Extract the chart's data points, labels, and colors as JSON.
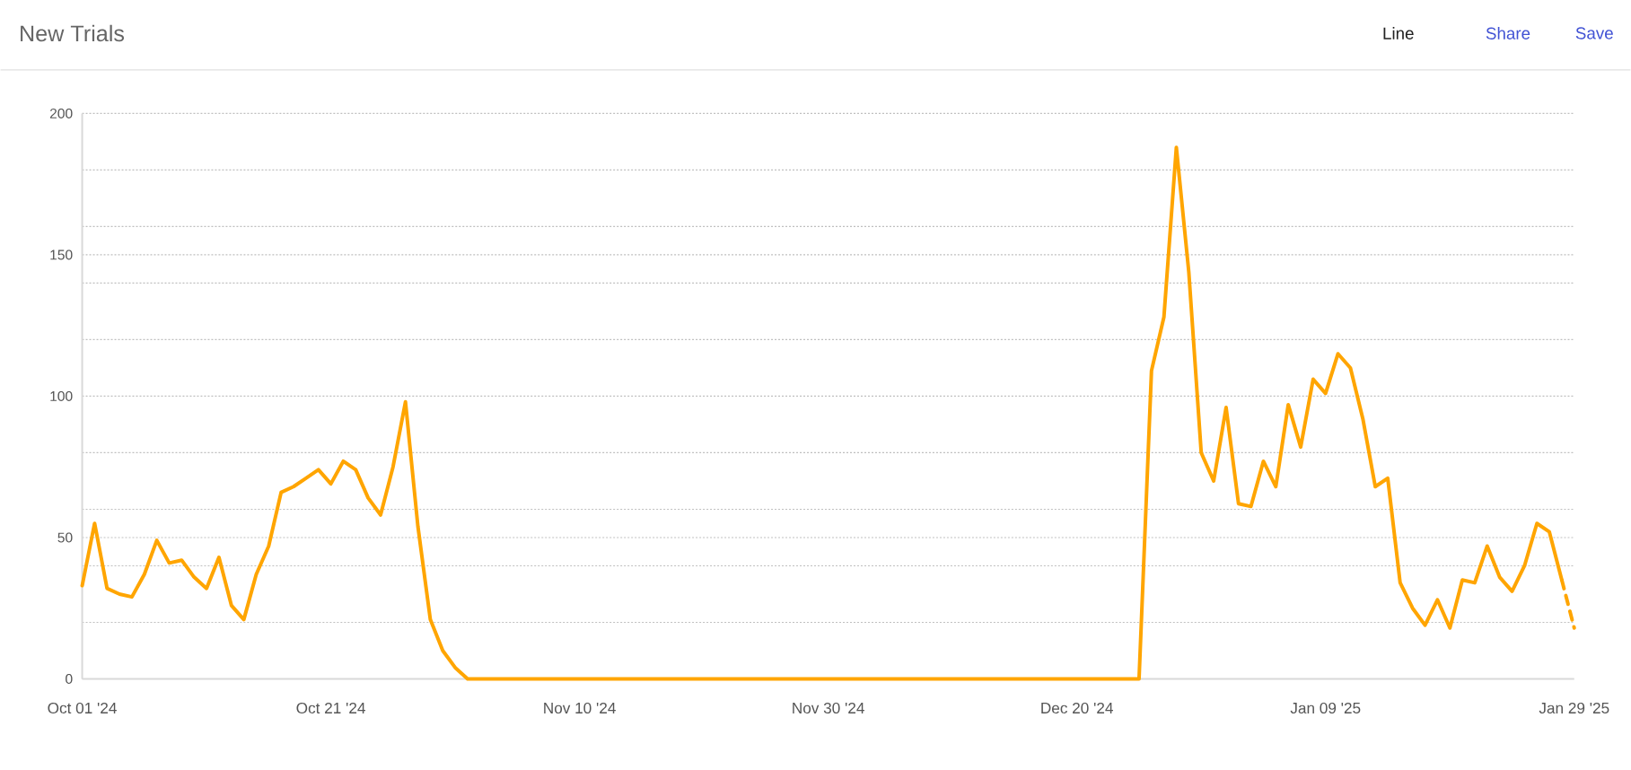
{
  "chart_data": {
    "type": "line",
    "title": "New Trials",
    "annotations": [
      "Line",
      "Share",
      "Save"
    ],
    "x": [
      "2024-10-01",
      "2024-10-02",
      "2024-10-03",
      "2024-10-04",
      "2024-10-05",
      "2024-10-06",
      "2024-10-07",
      "2024-10-08",
      "2024-10-09",
      "2024-10-10",
      "2024-10-11",
      "2024-10-12",
      "2024-10-13",
      "2024-10-14",
      "2024-10-15",
      "2024-10-16",
      "2024-10-17",
      "2024-10-18",
      "2024-10-19",
      "2024-10-20",
      "2024-10-21",
      "2024-10-22",
      "2024-10-23",
      "2024-10-24",
      "2024-10-25",
      "2024-10-26",
      "2024-10-27",
      "2024-10-28",
      "2024-10-29",
      "2024-10-30",
      "2024-10-31",
      "2024-11-01",
      "2024-11-02",
      "2024-11-03",
      "2024-11-04",
      "2024-11-05",
      "2024-11-06",
      "2024-11-07",
      "2024-11-08",
      "2024-11-09",
      "2024-11-10",
      "2024-11-11",
      "2024-11-12",
      "2024-11-13",
      "2024-11-14",
      "2024-11-15",
      "2024-11-16",
      "2024-11-17",
      "2024-11-18",
      "2024-11-19",
      "2024-11-20",
      "2024-11-21",
      "2024-11-22",
      "2024-11-23",
      "2024-11-24",
      "2024-11-25",
      "2024-11-26",
      "2024-11-27",
      "2024-11-28",
      "2024-11-29",
      "2024-11-30",
      "2024-12-01",
      "2024-12-02",
      "2024-12-03",
      "2024-12-04",
      "2024-12-05",
      "2024-12-06",
      "2024-12-07",
      "2024-12-08",
      "2024-12-09",
      "2024-12-10",
      "2024-12-11",
      "2024-12-12",
      "2024-12-13",
      "2024-12-14",
      "2024-12-15",
      "2024-12-16",
      "2024-12-17",
      "2024-12-18",
      "2024-12-19",
      "2024-12-20",
      "2024-12-21",
      "2024-12-22",
      "2024-12-23",
      "2024-12-24",
      "2024-12-25",
      "2024-12-26",
      "2024-12-27",
      "2024-12-28",
      "2024-12-29",
      "2024-12-30",
      "2024-12-31",
      "2025-01-01",
      "2025-01-02",
      "2025-01-03",
      "2025-01-04",
      "2025-01-05",
      "2025-01-06",
      "2025-01-07",
      "2025-01-08",
      "2025-01-09",
      "2025-01-10",
      "2025-01-11",
      "2025-01-12",
      "2025-01-13",
      "2025-01-14",
      "2025-01-15",
      "2025-01-16",
      "2025-01-17",
      "2025-01-18",
      "2025-01-19",
      "2025-01-20",
      "2025-01-21",
      "2025-01-22",
      "2025-01-23",
      "2025-01-24",
      "2025-01-25",
      "2025-01-26",
      "2025-01-27",
      "2025-01-28"
    ],
    "series": [
      {
        "color": "#ffa500",
        "values": [
          33,
          55,
          32,
          30,
          29,
          37,
          49,
          41,
          42,
          36,
          32,
          43,
          26,
          21,
          37,
          47,
          66,
          68,
          71,
          74,
          69,
          77,
          74,
          64,
          58,
          75,
          98,
          54,
          21,
          10,
          4,
          0,
          0,
          0,
          0,
          0,
          0,
          0,
          0,
          0,
          0,
          0,
          0,
          0,
          0,
          0,
          0,
          0,
          0,
          0,
          0,
          0,
          0,
          0,
          0,
          0,
          0,
          0,
          0,
          0,
          0,
          0,
          0,
          0,
          0,
          0,
          0,
          0,
          0,
          0,
          0,
          0,
          0,
          0,
          0,
          0,
          0,
          0,
          0,
          0,
          0,
          0,
          0,
          0,
          0,
          0,
          109,
          128,
          188,
          144,
          80,
          70,
          96,
          62,
          61,
          77,
          68,
          97,
          82,
          106,
          101,
          115,
          110,
          92,
          68,
          71,
          34,
          25,
          19,
          28,
          18,
          35,
          34,
          47,
          36,
          31,
          40,
          55,
          52,
          35
        ]
      },
      {
        "color": "#ffa500",
        "line_style": "dashed",
        "x": [
          "2025-01-28",
          "2025-01-29"
        ],
        "values": [
          35,
          18
        ]
      }
    ],
    "xlim": [
      "2024-10-01",
      "2025-01-29"
    ],
    "xticks": [
      {
        "value": "2024-10-01",
        "label": "Oct 01 '24"
      },
      {
        "value": "2024-10-21",
        "label": "Oct 21 '24"
      },
      {
        "value": "2024-11-10",
        "label": "Nov 10 '24"
      },
      {
        "value": "2024-11-30",
        "label": "Nov 30 '24"
      },
      {
        "value": "2024-12-20",
        "label": "Dec 20 '24"
      },
      {
        "value": "2025-01-09",
        "label": "Jan 09 '25"
      },
      {
        "value": "2025-01-29",
        "label": "Jan 29 '25"
      }
    ],
    "ylim": [
      0,
      200
    ],
    "yticks": [
      0,
      {
        "value": 20,
        "label": null
      },
      {
        "value": 40,
        "label": null
      },
      50,
      {
        "value": 60,
        "label": null
      },
      {
        "value": 80,
        "label": null
      },
      100,
      {
        "value": 120,
        "label": null
      },
      {
        "value": 140,
        "label": null
      },
      150,
      {
        "value": 160,
        "label": null
      },
      {
        "value": 180,
        "label": null
      },
      200
    ],
    "grid": "y"
  }
}
